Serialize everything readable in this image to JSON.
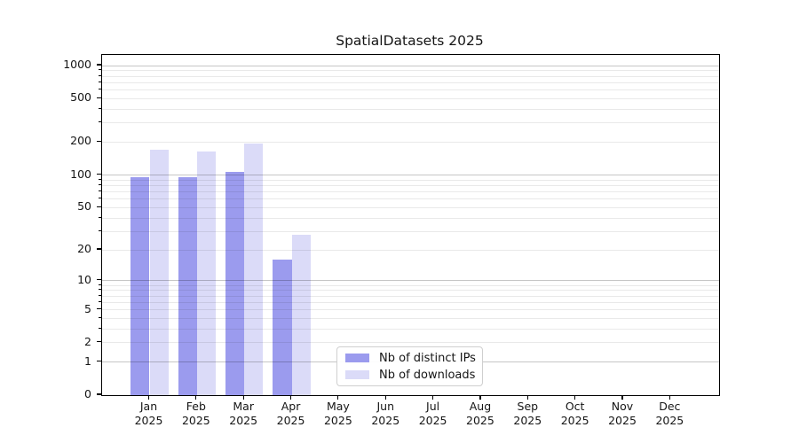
{
  "figure": {
    "title": "SpatialDatasets 2025",
    "background": "#ffffff"
  },
  "chart_data": {
    "type": "bar",
    "title": "SpatialDatasets 2025",
    "xlabel": "",
    "ylabel": "",
    "categories": [
      "Jan 2025",
      "Feb 2025",
      "Mar 2025",
      "Apr 2025",
      "May 2025",
      "Jun 2025",
      "Jul 2025",
      "Aug 2025",
      "Sep 2025",
      "Oct 2025",
      "Nov 2025",
      "Dec 2025"
    ],
    "category_month_line": [
      "Jan",
      "Feb",
      "Mar",
      "Apr",
      "May",
      "Jun",
      "Jul",
      "Aug",
      "Sep",
      "Oct",
      "Nov",
      "Dec"
    ],
    "category_year_line": "2025",
    "series": [
      {
        "name": "Nb of distinct IPs",
        "color": "#9b9bee",
        "values": [
          95,
          95,
          107,
          16,
          0,
          0,
          0,
          0,
          0,
          0,
          0,
          0
        ]
      },
      {
        "name": "Nb of downloads",
        "color": "#dbdbf8",
        "values": [
          170,
          163,
          196,
          28,
          0,
          0,
          0,
          0,
          0,
          0,
          0,
          0
        ]
      }
    ],
    "yscale": "log1p",
    "ylim": [
      0,
      1250
    ],
    "yticks_labeled": [
      0,
      1,
      2,
      5,
      10,
      20,
      50,
      100,
      200,
      500,
      1000
    ],
    "grid_major": [
      1,
      10,
      100,
      1000
    ],
    "grid_minor": [
      2,
      3,
      4,
      5,
      6,
      7,
      8,
      9,
      20,
      30,
      40,
      50,
      60,
      70,
      80,
      90,
      200,
      300,
      400,
      500,
      600,
      700,
      800,
      900
    ],
    "grid": "horizontal",
    "legend_position": "lower center inside plot",
    "colors": {
      "grid_major": "#c6c6c6",
      "grid_minor": "#e9e9e9",
      "spine": "#000000",
      "text": "#151515",
      "legend_border": "#cfcfcf"
    }
  }
}
